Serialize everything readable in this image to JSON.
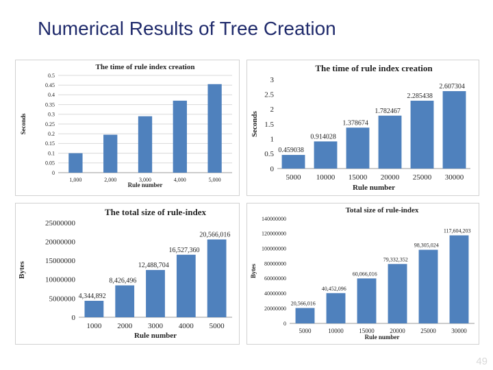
{
  "slide": {
    "title": "Numerical Results of Tree Creation",
    "page_number": "49"
  },
  "chart_data": [
    {
      "type": "bar",
      "title": "The time of rule index creation",
      "xlabel": "Rule number",
      "ylabel": "Seconds",
      "categories": [
        "1,000",
        "2,000",
        "3,000",
        "4,000",
        "5,000"
      ],
      "values": [
        0.1,
        0.195,
        0.29,
        0.37,
        0.455
      ],
      "data_labels": [],
      "yticks": [
        "0",
        "0.05",
        "0.1",
        "0.15",
        "0.2",
        "0.25",
        "0.3",
        "0.35",
        "0.4",
        "0.45",
        "0.5"
      ],
      "ylim": [
        0,
        0.5
      ],
      "grid": true,
      "bar_color": "#4f81bd"
    },
    {
      "type": "bar",
      "title": "The time of rule index creation",
      "xlabel": "Rule number",
      "ylabel": "Seconds",
      "categories": [
        "5000",
        "10000",
        "15000",
        "20000",
        "25000",
        "30000"
      ],
      "values": [
        0.459038,
        0.914028,
        1.378674,
        1.782467,
        2.285438,
        2.607304
      ],
      "data_labels": [
        "0.459038",
        "0.914028",
        "1.378674",
        "1.782467",
        "2.285438",
        "2.607304"
      ],
      "yticks": [
        "0",
        "0.5",
        "1",
        "1.5",
        "2",
        "2.5",
        "3"
      ],
      "ylim": [
        0,
        3
      ],
      "grid": false,
      "bar_color": "#4f81bd"
    },
    {
      "type": "bar",
      "title": "The total size of rule-index",
      "xlabel": "Rule number",
      "ylabel": "Bytes",
      "categories": [
        "1000",
        "2000",
        "3000",
        "4000",
        "5000"
      ],
      "values": [
        4344892,
        8426496,
        12488704,
        16527360,
        20566016
      ],
      "data_labels": [
        "4,344,892",
        "8,426,496",
        "12,488,704",
        "16,527,360",
        "20,566,016"
      ],
      "yticks": [
        "0",
        "5000000",
        "10000000",
        "15000000",
        "20000000",
        "25000000"
      ],
      "ylim": [
        0,
        25000000
      ],
      "grid": false,
      "bar_color": "#4f81bd"
    },
    {
      "type": "bar",
      "title": "Total size of rule-index",
      "xlabel": "Rule number",
      "ylabel": "Bytes",
      "categories": [
        "5000",
        "10000",
        "15000",
        "20000",
        "25000",
        "30000"
      ],
      "values": [
        20566016,
        40452096,
        60066016,
        79332352,
        98305024,
        117604203
      ],
      "data_labels": [
        "20,566,016",
        "40,452,096",
        "60,066,016",
        "79,332,352",
        "98,305,024",
        "117,604,203"
      ],
      "yticks": [
        "0",
        "20000000",
        "40000000",
        "60000000",
        "80000000",
        "100000000",
        "120000000",
        "140000000"
      ],
      "ylim": [
        0,
        140000000
      ],
      "grid": false,
      "bar_color": "#4f81bd"
    }
  ]
}
